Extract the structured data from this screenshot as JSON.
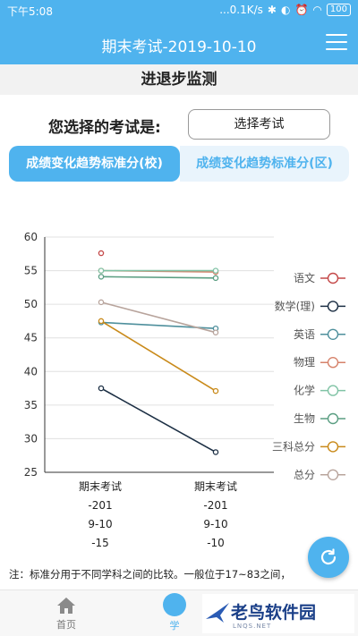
{
  "status_bar": {
    "time": "下午5:08",
    "network": "...0.1K/s",
    "battery": "100"
  },
  "header": {
    "title": "期末考试-2019-10-10"
  },
  "section_title": "进退步监测",
  "exam_select": {
    "label": "您选择的考试是:",
    "button": "选择考试"
  },
  "tabs": [
    {
      "label": "成绩变化趋势标准分(校)",
      "active": true
    },
    {
      "label": "成绩变化趋势标准分(区)",
      "active": false
    }
  ],
  "chart_data": {
    "type": "line",
    "x": [
      "期末考试",
      "期末考试"
    ],
    "ylim": [
      25,
      60
    ],
    "yticks": [
      25,
      30,
      35,
      40,
      45,
      50,
      55,
      60
    ],
    "grid": true,
    "legend_position": "right",
    "series": [
      {
        "name": "语文",
        "color": "#c44848",
        "values": [
          57.6,
          null
        ]
      },
      {
        "name": "数学(理)",
        "color": "#1c2f44",
        "values": [
          37.5,
          28.0
        ]
      },
      {
        "name": "英语",
        "color": "#4e8f9c",
        "values": [
          47.3,
          46.4
        ]
      },
      {
        "name": "物理",
        "color": "#d6826a",
        "values": [
          55.0,
          54.8
        ]
      },
      {
        "name": "化学",
        "color": "#80c3a5",
        "values": [
          55.0,
          55.0
        ]
      },
      {
        "name": "生物",
        "color": "#5a9e82",
        "values": [
          54.1,
          53.9
        ]
      },
      {
        "name": "三科总分",
        "color": "#c98a1a",
        "values": [
          47.5,
          37.1
        ]
      },
      {
        "name": "总分",
        "color": "#b8a49c",
        "values": [
          50.3,
          45.8
        ]
      }
    ]
  },
  "exam_columns": [
    {
      "name": "期末考试",
      "line1": "-201",
      "line2": "9-10",
      "line3": "-15"
    },
    {
      "name": "期末考试",
      "line1": "-201",
      "line2": "9-10",
      "line3": "-10"
    }
  ],
  "note": "注：标准分用于不同学科之间的比较。一般位于17~83之间，",
  "bottom_nav": {
    "home": "首页",
    "center": "学"
  },
  "watermark": {
    "text": "老鸟软件园",
    "sub": "LNQS.NET"
  }
}
